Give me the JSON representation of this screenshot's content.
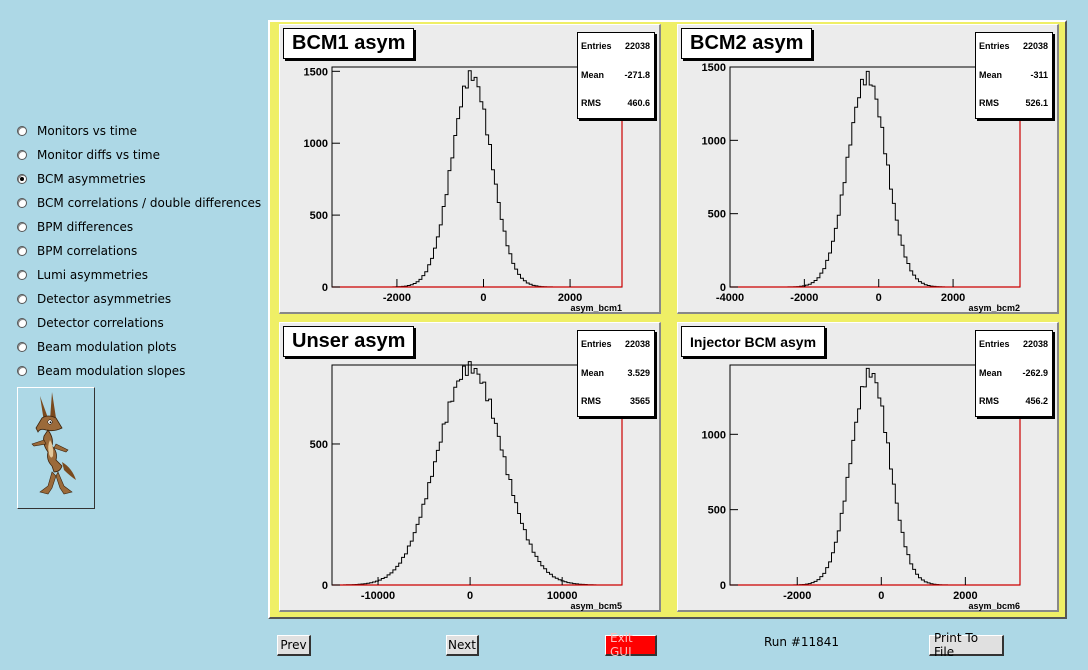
{
  "menu": {
    "options": [
      {
        "label": "Monitors vs time",
        "checked": false
      },
      {
        "label": "Monitor diffs vs time",
        "checked": false
      },
      {
        "label": "BCM asymmetries",
        "checked": true
      },
      {
        "label": "BCM correlations / double differences",
        "checked": false
      },
      {
        "label": "BPM differences",
        "checked": false
      },
      {
        "label": "BPM correlations",
        "checked": false
      },
      {
        "label": "Lumi asymmetries",
        "checked": false
      },
      {
        "label": "Detector asymmetries",
        "checked": false
      },
      {
        "label": "Detector correlations",
        "checked": false
      },
      {
        "label": "Beam modulation plots",
        "checked": false
      },
      {
        "label": "Beam modulation slopes",
        "checked": false
      }
    ],
    "logo_icon": "coyote-icon"
  },
  "pads": [
    {
      "title": "BCM1 asym",
      "stats": {
        "entries_label": "Entries",
        "entries": "22038",
        "mean_label": "Mean",
        "mean": "-271.8",
        "rms_label": "RMS",
        "rms": "460.6"
      },
      "xlabel": "asym_bcm1"
    },
    {
      "title": "BCM2 asym",
      "stats": {
        "entries_label": "Entries",
        "entries": "22038",
        "mean_label": "Mean",
        "mean": "-311",
        "rms_label": "RMS",
        "rms": "526.1"
      },
      "xlabel": "asym_bcm2"
    },
    {
      "title": "Unser asym",
      "stats": {
        "entries_label": "Entries",
        "entries": "22038",
        "mean_label": "Mean",
        "mean": "3.529",
        "rms_label": "RMS",
        "rms": "3565"
      },
      "xlabel": "asym_bcm5"
    },
    {
      "title": "Injector BCM asym",
      "stats": {
        "entries_label": "Entries",
        "entries": "22038",
        "mean_label": "Mean",
        "mean": "-262.9",
        "rms_label": "RMS",
        "rms": "456.2"
      },
      "xlabel": "asym_bcm6"
    }
  ],
  "chart_data": [
    {
      "type": "histogram",
      "title": "BCM1 asym",
      "xlabel": "asym_bcm1",
      "xlim": [
        -3500,
        3200
      ],
      "ylim": [
        0,
        1530
      ],
      "xticks": [
        -2000,
        0,
        2000
      ],
      "yticks": [
        0,
        500,
        1000,
        1500
      ],
      "entries": 22038,
      "mean": -271.8,
      "rms": 460.6,
      "peak": 1470
    },
    {
      "type": "histogram",
      "title": "BCM2 asym",
      "xlabel": "asym_bcm2",
      "xlim": [
        -4000,
        3800
      ],
      "ylim": [
        0,
        1500
      ],
      "xticks": [
        -4000,
        -2000,
        0,
        2000
      ],
      "yticks": [
        0,
        500,
        1000,
        1500
      ],
      "entries": 22038,
      "mean": -311,
      "rms": 526.1,
      "peak": 1430
    },
    {
      "type": "histogram",
      "title": "Unser asym",
      "xlabel": "asym_bcm5",
      "xlim": [
        -15000,
        16500
      ],
      "ylim": [
        0,
        780
      ],
      "xticks": [
        -10000,
        0,
        10000
      ],
      "yticks": [
        0,
        500
      ],
      "entries": 22038,
      "mean": 3.529,
      "rms": 3565,
      "peak": 770
    },
    {
      "type": "histogram",
      "title": "Injector BCM asym",
      "xlabel": "asym_bcm6",
      "xlim": [
        -3600,
        3300
      ],
      "ylim": [
        0,
        1460
      ],
      "xticks": [
        -2000,
        0,
        2000
      ],
      "yticks": [
        0,
        500,
        1000
      ],
      "entries": 22038,
      "mean": -262.9,
      "rms": 456.2,
      "peak": 1410
    }
  ],
  "buttons": {
    "prev": "Prev",
    "next": "Next",
    "exit": "Exit GUI",
    "print": "Print To File"
  },
  "run_label": "Run #11841",
  "colors": {
    "background": "#add8e6",
    "canvas": "#efef66",
    "pad": "#ececec",
    "exit_button": "#ff0000",
    "axis_red": "#cc0000"
  }
}
